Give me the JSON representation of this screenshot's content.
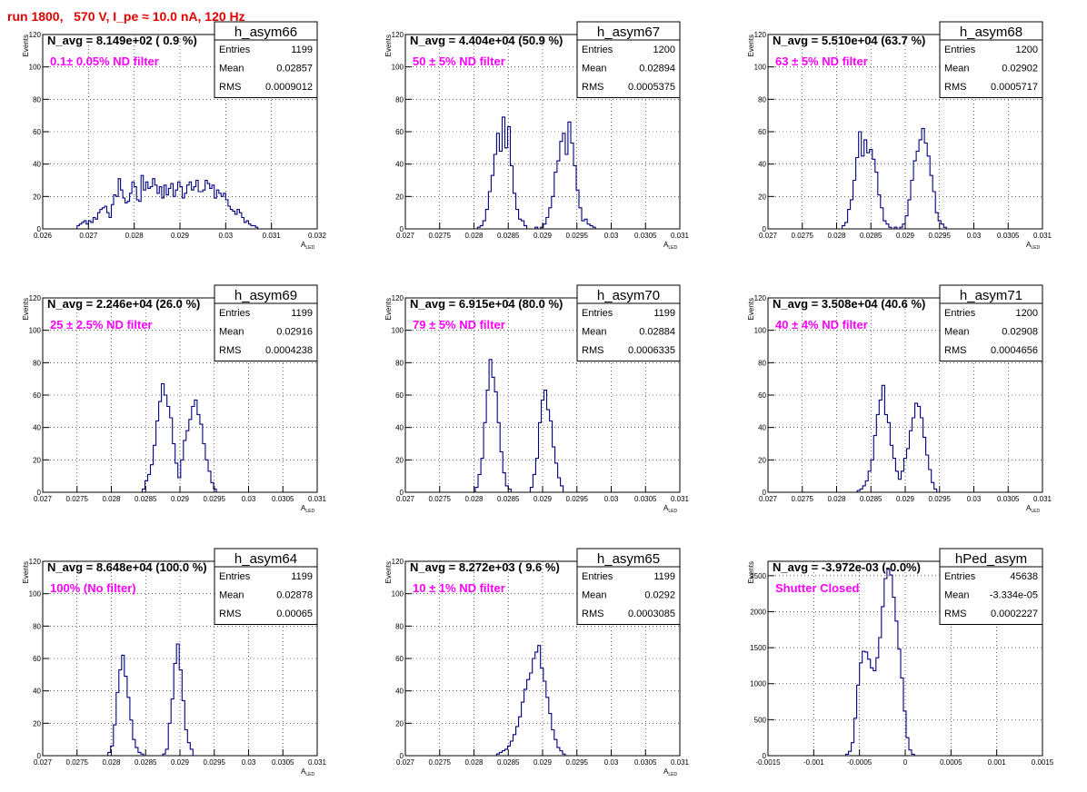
{
  "page_title": "run 1800,   570 V, I_pe ≈ 10.0 nA, 120 Hz",
  "colors": {
    "title": "#e00000",
    "annotation": "#ff00ff",
    "histogram": "#000080",
    "frame": "#000000",
    "grid": "#000000"
  },
  "common": {
    "ylabel": "Events",
    "xlabel": "A",
    "xlabel_sub": "LED"
  },
  "panels": [
    {
      "name": "h_asym66",
      "navg": "N_avg = 8.149e+02 ( 0.9 %)",
      "note": "0.1± 0.05% ND filter",
      "stats": [
        [
          "Entries",
          "1199"
        ],
        [
          "Mean",
          "0.02857"
        ],
        [
          "RMS",
          "0.0009012"
        ]
      ],
      "ylim": [
        0,
        120
      ],
      "yticks": [
        0,
        20,
        40,
        60,
        80,
        100,
        120
      ],
      "ytick_labels": [
        "0",
        "20",
        "40",
        "60",
        "80",
        "100",
        "120"
      ],
      "xlim": [
        0.026,
        0.032
      ],
      "xticks": [
        0.026,
        0.027,
        0.028,
        0.029,
        0.03,
        0.031,
        0.032
      ],
      "xtick_labels": [
        "0.026",
        "0.027",
        "0.028",
        "0.029",
        "0.03",
        "0.031",
        "0.032"
      ],
      "xlabel": true
    },
    {
      "name": "h_asym67",
      "navg": "N_avg = 4.404e+04 (50.9 %)",
      "note": "50 ± 5% ND filter",
      "stats": [
        [
          "Entries",
          "1200"
        ],
        [
          "Mean",
          "0.02894"
        ],
        [
          "RMS",
          "0.0005375"
        ]
      ],
      "ylim": [
        0,
        120
      ],
      "yticks": [
        0,
        20,
        40,
        60,
        80,
        100,
        120
      ],
      "ytick_labels": [
        "0",
        "20",
        "40",
        "60",
        "80",
        "100",
        "120"
      ],
      "xlim": [
        0.027,
        0.031
      ],
      "xticks": [
        0.027,
        0.0275,
        0.028,
        0.0285,
        0.029,
        0.0295,
        0.03,
        0.0305,
        0.031
      ],
      "xtick_labels": [
        "0.027",
        "0.0275",
        "0.028",
        "0.0285",
        "0.029",
        "0.0295",
        "0.03",
        "0.0305",
        "0.031"
      ],
      "xlabel": true
    },
    {
      "name": "h_asym68",
      "navg": "N_avg = 5.510e+04 (63.7 %)",
      "note": "63 ± 5% ND filter",
      "stats": [
        [
          "Entries",
          "1200"
        ],
        [
          "Mean",
          "0.02902"
        ],
        [
          "RMS",
          "0.0005717"
        ]
      ],
      "ylim": [
        0,
        120
      ],
      "yticks": [
        0,
        20,
        40,
        60,
        80,
        100,
        120
      ],
      "ytick_labels": [
        "0",
        "20",
        "40",
        "60",
        "80",
        "100",
        "120"
      ],
      "xlim": [
        0.027,
        0.031
      ],
      "xticks": [
        0.027,
        0.0275,
        0.028,
        0.0285,
        0.029,
        0.0295,
        0.03,
        0.0305,
        0.031
      ],
      "xtick_labels": [
        "0.027",
        "0.0275",
        "0.028",
        "0.0285",
        "0.029",
        "0.0295",
        "0.03",
        "0.0305",
        "0.031"
      ],
      "xlabel": true
    },
    {
      "name": "h_asym69",
      "navg": "N_avg = 2.246e+04 (26.0 %)",
      "note": "25 ± 2.5% ND filter",
      "stats": [
        [
          "Entries",
          "1199"
        ],
        [
          "Mean",
          "0.02916"
        ],
        [
          "RMS",
          "0.0004238"
        ]
      ],
      "ylim": [
        0,
        120
      ],
      "yticks": [
        0,
        20,
        40,
        60,
        80,
        100,
        120
      ],
      "ytick_labels": [
        "0",
        "20",
        "40",
        "60",
        "80",
        "100",
        "120"
      ],
      "xlim": [
        0.027,
        0.031
      ],
      "xticks": [
        0.027,
        0.0275,
        0.028,
        0.0285,
        0.029,
        0.0295,
        0.03,
        0.0305,
        0.031
      ],
      "xtick_labels": [
        "0.027",
        "0.0275",
        "0.028",
        "0.0285",
        "0.029",
        "0.0295",
        "0.03",
        "0.0305",
        "0.031"
      ],
      "xlabel": true
    },
    {
      "name": "h_asym70",
      "navg": "N_avg = 6.915e+04 (80.0 %)",
      "note": "79 ± 5% ND filter",
      "stats": [
        [
          "Entries",
          "1199"
        ],
        [
          "Mean",
          "0.02884"
        ],
        [
          "RMS",
          "0.0006335"
        ]
      ],
      "ylim": [
        0,
        120
      ],
      "yticks": [
        0,
        20,
        40,
        60,
        80,
        100,
        120
      ],
      "ytick_labels": [
        "0",
        "20",
        "40",
        "60",
        "80",
        "100",
        "120"
      ],
      "xlim": [
        0.027,
        0.031
      ],
      "xticks": [
        0.027,
        0.0275,
        0.028,
        0.0285,
        0.029,
        0.0295,
        0.03,
        0.0305,
        0.031
      ],
      "xtick_labels": [
        "0.027",
        "0.0275",
        "0.028",
        "0.0285",
        "0.029",
        "0.0295",
        "0.03",
        "0.0305",
        "0.031"
      ],
      "xlabel": true
    },
    {
      "name": "h_asym71",
      "navg": "N_avg = 3.508e+04 (40.6 %)",
      "note": "40 ± 4% ND filter",
      "stats": [
        [
          "Entries",
          "1200"
        ],
        [
          "Mean",
          "0.02908"
        ],
        [
          "RMS",
          "0.0004656"
        ]
      ],
      "ylim": [
        0,
        120
      ],
      "yticks": [
        0,
        20,
        40,
        60,
        80,
        100,
        120
      ],
      "ytick_labels": [
        "0",
        "20",
        "40",
        "60",
        "80",
        "100",
        "120"
      ],
      "xlim": [
        0.027,
        0.031
      ],
      "xticks": [
        0.027,
        0.0275,
        0.028,
        0.0285,
        0.029,
        0.0295,
        0.03,
        0.0305,
        0.031
      ],
      "xtick_labels": [
        "0.027",
        "0.0275",
        "0.028",
        "0.0285",
        "0.029",
        "0.0295",
        "0.03",
        "0.0305",
        "0.031"
      ],
      "xlabel": true
    },
    {
      "name": "h_asym64",
      "navg": "N_avg = 8.648e+04 (100.0 %)",
      "note": "100% (No filter)",
      "stats": [
        [
          "Entries",
          "1199"
        ],
        [
          "Mean",
          "0.02878"
        ],
        [
          "RMS",
          "0.00065"
        ]
      ],
      "ylim": [
        0,
        120
      ],
      "yticks": [
        0,
        20,
        40,
        60,
        80,
        100,
        120
      ],
      "ytick_labels": [
        "0",
        "20",
        "40",
        "60",
        "80",
        "100",
        "120"
      ],
      "xlim": [
        0.027,
        0.031
      ],
      "xticks": [
        0.027,
        0.0275,
        0.028,
        0.0285,
        0.029,
        0.0295,
        0.03,
        0.0305,
        0.031
      ],
      "xtick_labels": [
        "0.027",
        "0.0275",
        "0.028",
        "0.0285",
        "0.029",
        "0.0295",
        "0.03",
        "0.0305",
        "0.031"
      ],
      "xlabel": true
    },
    {
      "name": "h_asym65",
      "navg": "N_avg = 8.272e+03 ( 9.6 %)",
      "note": "10 ± 1% ND filter",
      "stats": [
        [
          "Entries",
          "1199"
        ],
        [
          "Mean",
          "0.0292"
        ],
        [
          "RMS",
          "0.0003085"
        ]
      ],
      "ylim": [
        0,
        120
      ],
      "yticks": [
        0,
        20,
        40,
        60,
        80,
        100,
        120
      ],
      "ytick_labels": [
        "0",
        "20",
        "40",
        "60",
        "80",
        "100",
        "120"
      ],
      "xlim": [
        0.027,
        0.031
      ],
      "xticks": [
        0.027,
        0.0275,
        0.028,
        0.0285,
        0.029,
        0.0295,
        0.03,
        0.0305,
        0.031
      ],
      "xtick_labels": [
        "0.027",
        "0.0275",
        "0.028",
        "0.0285",
        "0.029",
        "0.0295",
        "0.03",
        "0.0305",
        "0.031"
      ],
      "xlabel": true
    },
    {
      "name": "hPed_asym",
      "navg": "N_avg = -3.972e-03 (-0.0%)",
      "note": "Shutter Closed",
      "stats": [
        [
          "Entries",
          "45638"
        ],
        [
          "Mean",
          "-3.334e-05"
        ],
        [
          "RMS",
          "0.0002227"
        ]
      ],
      "ylim": [
        0,
        2700
      ],
      "yticks": [
        0,
        500,
        1000,
        1500,
        2000,
        2500
      ],
      "ytick_labels": [
        "0",
        "500",
        "1000",
        "1500",
        "2000",
        "2500"
      ],
      "xlim": [
        -0.0015,
        0.0015
      ],
      "xticks": [
        -0.0015,
        -0.001,
        -0.0005,
        0,
        0.0005,
        0.001,
        0.0015
      ],
      "xtick_labels": [
        "-0.0015",
        "-0.001",
        "-0.0005",
        "0",
        "0.0005",
        "0.001",
        "0.0015"
      ],
      "xlabel": false
    }
  ],
  "chart_data": [
    {
      "type": "bar",
      "histogram": "h_asym66",
      "ylabel": "Events",
      "xlabel": "A LED",
      "xlim": [
        0.026,
        0.032
      ],
      "ylim": [
        0,
        120
      ],
      "grid": true,
      "bin_start": 0.02675,
      "bin_width": 5e-05,
      "values": [
        2,
        3,
        4,
        5,
        3,
        5,
        4,
        7,
        6,
        10,
        12,
        13,
        14,
        10,
        7,
        15,
        21,
        20,
        31,
        24,
        19,
        16,
        17,
        22,
        29,
        26,
        18,
        17,
        33,
        24,
        29,
        25,
        26,
        31,
        27,
        22,
        26,
        19,
        27,
        21,
        25,
        28,
        20,
        24,
        29,
        26,
        19,
        22,
        27,
        29,
        24,
        26,
        30,
        23,
        23,
        24,
        30,
        28,
        25,
        27,
        19,
        24,
        22,
        20,
        22,
        18,
        14,
        12,
        11,
        9,
        12,
        10,
        7,
        4,
        5,
        3,
        2,
        2,
        1
      ]
    },
    {
      "type": "bar",
      "histogram": "h_asym67",
      "ylabel": "Events",
      "xlabel": "A LED",
      "xlim": [
        0.027,
        0.031
      ],
      "ylim": [
        0,
        120
      ],
      "grid": true,
      "bin_start": 0.02805,
      "bin_width": 4e-05,
      "values": [
        1,
        2,
        5,
        12,
        23,
        33,
        46,
        59,
        48,
        69,
        50,
        63,
        39,
        22,
        12,
        6,
        5,
        2,
        0,
        0,
        0,
        1,
        0,
        1,
        3,
        7,
        13,
        20,
        35,
        42,
        54,
        59,
        46,
        66,
        53,
        39,
        24,
        13,
        5,
        6,
        3,
        2,
        1
      ]
    },
    {
      "type": "bar",
      "histogram": "h_asym68",
      "ylabel": "Events",
      "xlabel": "A LED",
      "xlim": [
        0.027,
        0.031
      ],
      "ylim": [
        0,
        120
      ],
      "grid": true,
      "bin_start": 0.02808,
      "bin_width": 4e-05,
      "values": [
        2,
        4,
        12,
        18,
        30,
        44,
        60,
        45,
        55,
        47,
        49,
        43,
        35,
        21,
        13,
        5,
        3,
        1,
        0,
        1,
        0,
        1,
        3,
        8,
        18,
        30,
        42,
        48,
        55,
        62,
        53,
        45,
        33,
        23,
        10,
        5,
        3,
        1
      ]
    },
    {
      "type": "bar",
      "histogram": "h_asym69",
      "ylabel": "Events",
      "xlabel": "A LED",
      "xlim": [
        0.027,
        0.031
      ],
      "ylim": [
        0,
        120
      ],
      "grid": true,
      "bin_start": 0.02845,
      "bin_width": 4e-05,
      "values": [
        2,
        7,
        11,
        17,
        29,
        44,
        56,
        67,
        60,
        53,
        46,
        30,
        18,
        9,
        20,
        32,
        38,
        45,
        53,
        57,
        48,
        42,
        30,
        20,
        13,
        6,
        2
      ]
    },
    {
      "type": "bar",
      "histogram": "h_asym70",
      "ylabel": "Events",
      "xlabel": "A LED",
      "xlim": [
        0.027,
        0.031
      ],
      "ylim": [
        0,
        120
      ],
      "grid": true,
      "bin_start": 0.02802,
      "bin_width": 4e-05,
      "values": [
        3,
        11,
        21,
        43,
        63,
        82,
        71,
        62,
        43,
        25,
        12,
        4,
        2,
        0,
        0,
        0,
        0,
        0,
        0,
        0,
        3,
        11,
        21,
        43,
        57,
        63,
        51,
        44,
        28,
        18,
        9,
        4
      ]
    },
    {
      "type": "bar",
      "histogram": "h_asym71",
      "ylabel": "Events",
      "xlabel": "A LED",
      "xlim": [
        0.027,
        0.031
      ],
      "ylim": [
        0,
        120
      ],
      "grid": true,
      "bin_start": 0.0283,
      "bin_width": 4e-05,
      "values": [
        1,
        2,
        4,
        7,
        13,
        20,
        35,
        48,
        57,
        66,
        48,
        43,
        29,
        21,
        13,
        8,
        13,
        21,
        27,
        38,
        46,
        55,
        53,
        46,
        34,
        23,
        14,
        6,
        2
      ]
    },
    {
      "type": "bar",
      "histogram": "h_asym64",
      "ylabel": "Events",
      "xlabel": "A LED",
      "xlim": [
        0.027,
        0.031
      ],
      "ylim": [
        0,
        120
      ],
      "grid": true,
      "bin_start": 0.02795,
      "bin_width": 4e-05,
      "values": [
        2,
        6,
        19,
        39,
        53,
        62,
        49,
        36,
        22,
        10,
        5,
        2,
        1,
        0,
        0,
        0,
        0,
        0,
        0,
        0,
        1,
        4,
        20,
        35,
        57,
        69,
        53,
        34,
        16,
        8,
        4
      ]
    },
    {
      "type": "bar",
      "histogram": "h_asym65",
      "ylabel": "Events",
      "xlabel": "A LED",
      "xlim": [
        0.027,
        0.031
      ],
      "ylim": [
        0,
        120
      ],
      "grid": true,
      "bin_start": 0.02833,
      "bin_width": 4e-05,
      "values": [
        1,
        2,
        3,
        4,
        6,
        9,
        13,
        18,
        24,
        33,
        41,
        47,
        51,
        60,
        64,
        68,
        54,
        46,
        36,
        26,
        16,
        10,
        5,
        3,
        1
      ]
    },
    {
      "type": "bar",
      "histogram": "hPed_asym",
      "ylabel": "Events",
      "xlabel": "",
      "xlim": [
        -0.0015,
        0.0015
      ],
      "ylim": [
        0,
        2700
      ],
      "grid": true,
      "bin_start": -0.00065,
      "bin_width": 3e-05,
      "values": [
        20,
        60,
        180,
        520,
        980,
        1290,
        1450,
        1440,
        1340,
        1220,
        1180,
        1360,
        1640,
        2070,
        2460,
        2590,
        2510,
        2200,
        1870,
        1480,
        1080,
        620,
        250,
        80,
        20
      ]
    }
  ]
}
